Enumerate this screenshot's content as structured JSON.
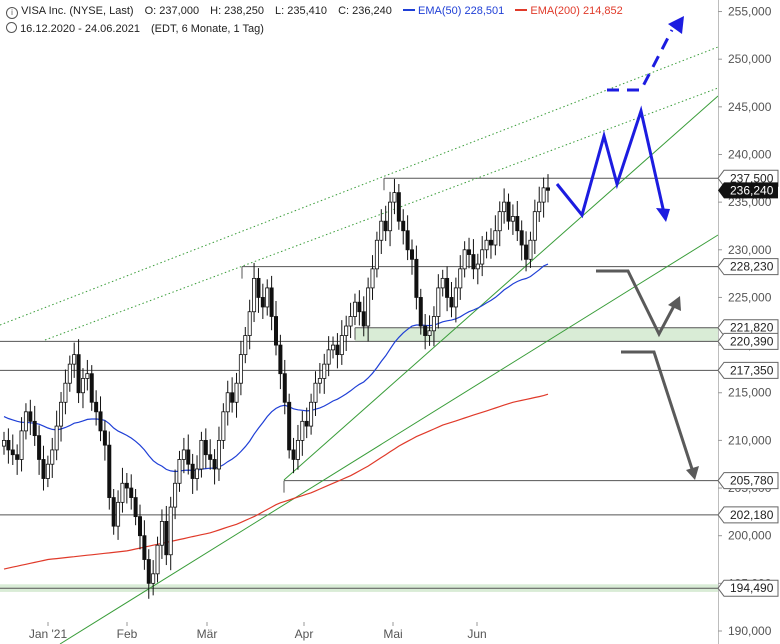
{
  "header": {
    "symbol": "VISA Inc. (NYSE, Last)",
    "open": "O: 237,000",
    "high": "H: 238,250",
    "low": "L: 235,410",
    "close": "C: 236,240",
    "ema50_label": "EMA(50)",
    "ema50_value": "228,501",
    "ema200_label": "EMA(200)",
    "ema200_value": "214,852",
    "range": "16.12.2020 - 24.06.2021",
    "settings": "(EDT, 6 Monate, 1 Tag)"
  },
  "colors": {
    "up": "#ffffff",
    "down": "#111111",
    "ema50": "#1f3fd6",
    "ema200": "#e03a2a",
    "trend": "#3a9d3a",
    "support_zone": "#d9ecd6",
    "projection_blue": "#1c1ce0",
    "projection_grey": "#5a5a5a"
  },
  "chart_data": {
    "type": "candlestick",
    "x_labels": [
      "Jan '21",
      "Feb",
      "Mär",
      "Apr",
      "Mai",
      "Jun"
    ],
    "ylim": [
      190000,
      256000
    ],
    "y_ticks": [
      {
        "value": 190000,
        "label": "190,000"
      },
      {
        "value": 195000,
        "label": "195,000"
      },
      {
        "value": 200000,
        "label": "200,000"
      },
      {
        "value": 205000,
        "label": "205,000"
      },
      {
        "value": 210000,
        "label": "210,000"
      },
      {
        "value": 215000,
        "label": "215,000"
      },
      {
        "value": 220000,
        "label": "220,000"
      },
      {
        "value": 225000,
        "label": "225,000"
      },
      {
        "value": 230000,
        "label": "230,000"
      },
      {
        "value": 235000,
        "label": "235,000"
      },
      {
        "value": 240000,
        "label": "240,000"
      },
      {
        "value": 245000,
        "label": "245,000"
      },
      {
        "value": 250000,
        "label": "250,000"
      },
      {
        "value": 255000,
        "label": "255,000"
      }
    ],
    "levels": [
      {
        "value": 237500,
        "label": "237,500"
      },
      {
        "value": 228230,
        "label": "228,230"
      },
      {
        "value": 221820,
        "label": "221,820"
      },
      {
        "value": 220390,
        "label": "220,390"
      },
      {
        "value": 217350,
        "label": "217,350"
      },
      {
        "value": 205780,
        "label": "205,780"
      },
      {
        "value": 202180,
        "label": "202,180"
      },
      {
        "value": 194490,
        "label": "194,490"
      }
    ],
    "last_price": {
      "value": 236240,
      "label": "236,240"
    },
    "support_zone": [
      220390,
      221820
    ],
    "closes": [
      210000,
      209000,
      208500,
      208000,
      211000,
      213000,
      212000,
      210500,
      208000,
      206000,
      207500,
      209000,
      211500,
      214000,
      216000,
      218000,
      219000,
      215000,
      216500,
      217000,
      214000,
      213000,
      211000,
      209500,
      204000,
      201000,
      203500,
      205500,
      205000,
      204000,
      202000,
      200000,
      197500,
      195000,
      196000,
      199000,
      201500,
      198000,
      203000,
      205500,
      208000,
      209000,
      207500,
      206000,
      207000,
      210000,
      208500,
      208000,
      207000,
      210000,
      213000,
      215000,
      214000,
      216000,
      219000,
      221000,
      223500,
      227000,
      225000,
      224000,
      226000,
      223000,
      220000,
      217000,
      214000,
      209000,
      208000,
      210000,
      212000,
      211500,
      214000,
      216000,
      216500,
      218000,
      219500,
      220000,
      219000,
      221000,
      222000,
      223000,
      224500,
      223500,
      222000,
      226000,
      228000,
      231000,
      233000,
      232000,
      235000,
      236000,
      233000,
      232000,
      230000,
      229000,
      225000,
      222000,
      221000,
      221500,
      223000,
      226000,
      227000,
      225000,
      224000,
      226000,
      228000,
      230000,
      229500,
      228000,
      228500,
      230000,
      231000,
      230500,
      232000,
      234000,
      235000,
      233000,
      233500,
      232000,
      230500,
      229000,
      231000,
      234000,
      235000,
      236500,
      236240
    ],
    "ema50": [
      212500,
      212300,
      212150,
      212000,
      211900,
      211900,
      211850,
      211800,
      211700,
      211500,
      211300,
      211150,
      211100,
      211200,
      211350,
      211550,
      211800,
      211900,
      212050,
      212200,
      212250,
      212250,
      212200,
      212100,
      211750,
      211300,
      210980,
      210750,
      210520,
      210250,
      209900,
      209500,
      209000,
      208400,
      207870,
      207530,
      207300,
      206960,
      206800,
      206740,
      206780,
      206860,
      206880,
      206850,
      206860,
      206980,
      207040,
      207080,
      207080,
      207200,
      207440,
      207760,
      208040,
      208380,
      208830,
      209340,
      209930,
      210650,
      211290,
      211870,
      212500,
      213000,
      213360,
      213590,
      213680,
      213520,
      213320,
      213210,
      213160,
      213100,
      213140,
      213270,
      213410,
      213610,
      213860,
      214130,
      214320,
      214590,
      214880,
      215200,
      215570,
      215890,
      216130,
      216550,
      217040,
      217640,
      218290,
      218880,
      219580,
      220270,
      220810,
      221280,
      221660,
      221990,
      222110,
      222110,
      222070,
      222050,
      222090,
      222250,
      222440,
      222550,
      222620,
      222760,
      222970,
      223250,
      223500,
      223680,
      223880,
      224140,
      224430,
      224690,
      225000,
      225380,
      225790,
      226100,
      226420,
      226670,
      226860,
      226990,
      227200,
      227540,
      227900,
      228300,
      228501
    ],
    "ema200": [
      196500,
      196600,
      196700,
      196800,
      196900,
      197000,
      197100,
      197200,
      197300,
      197400,
      197500,
      197550,
      197600,
      197650,
      197700,
      197750,
      197800,
      197850,
      197900,
      197950,
      198000,
      198050,
      198100,
      198150,
      198200,
      198250,
      198300,
      198350,
      198400,
      198500,
      198600,
      198700,
      198800,
      198900,
      199000,
      199100,
      199200,
      199300,
      199400,
      199500,
      199600,
      199700,
      199800,
      199900,
      200000,
      200100,
      200200,
      200300,
      200450,
      200600,
      200750,
      200900,
      201050,
      201200,
      201400,
      201600,
      201800,
      202000,
      202250,
      202500,
      202750,
      203000,
      203250,
      203450,
      203600,
      203750,
      203900,
      204050,
      204200,
      204350,
      204500,
      204700,
      204900,
      205100,
      205300,
      205500,
      205700,
      205900,
      206100,
      206300,
      206550,
      206800,
      207050,
      207300,
      207600,
      207900,
      208200,
      208500,
      208800,
      209100,
      209400,
      209650,
      209900,
      210150,
      210400,
      210600,
      210800,
      211000,
      211200,
      211400,
      211600,
      211750,
      211900,
      212050,
      212200,
      212350,
      212500,
      212650,
      212800,
      212950,
      213100,
      213250,
      213400,
      213550,
      213700,
      213850,
      214000,
      214100,
      214200,
      214300,
      214400,
      214500,
      214600,
      214700,
      214852
    ]
  }
}
